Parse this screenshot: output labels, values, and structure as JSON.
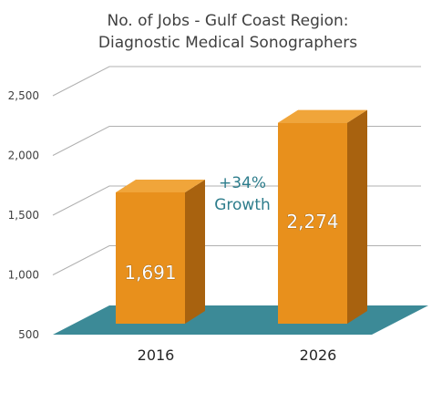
{
  "chart_data": {
    "type": "bar",
    "title": [
      "No. of Jobs - Gulf Coast Region:",
      "Diagnostic Medical Sonographers"
    ],
    "categories": [
      "2016",
      "2026"
    ],
    "values": [
      1691,
      2274
    ],
    "value_labels": [
      "1,691",
      "2,274"
    ],
    "ylim": [
      500,
      2500
    ],
    "yticks": [
      500,
      1000,
      1500,
      2000,
      2500
    ],
    "ytick_labels": [
      "500",
      "1,000",
      "1,500",
      "2,000",
      "2,500"
    ],
    "annotation": [
      "+34%",
      "Growth"
    ],
    "grid": true,
    "legend": "none",
    "colors": {
      "bar_front": "#e8901c",
      "bar_side": "#a8620f",
      "bar_top": "#f0a53a",
      "floor": "#3c8a97",
      "annotation": "#2e7d8c",
      "grid": "#b0b0b0"
    }
  }
}
